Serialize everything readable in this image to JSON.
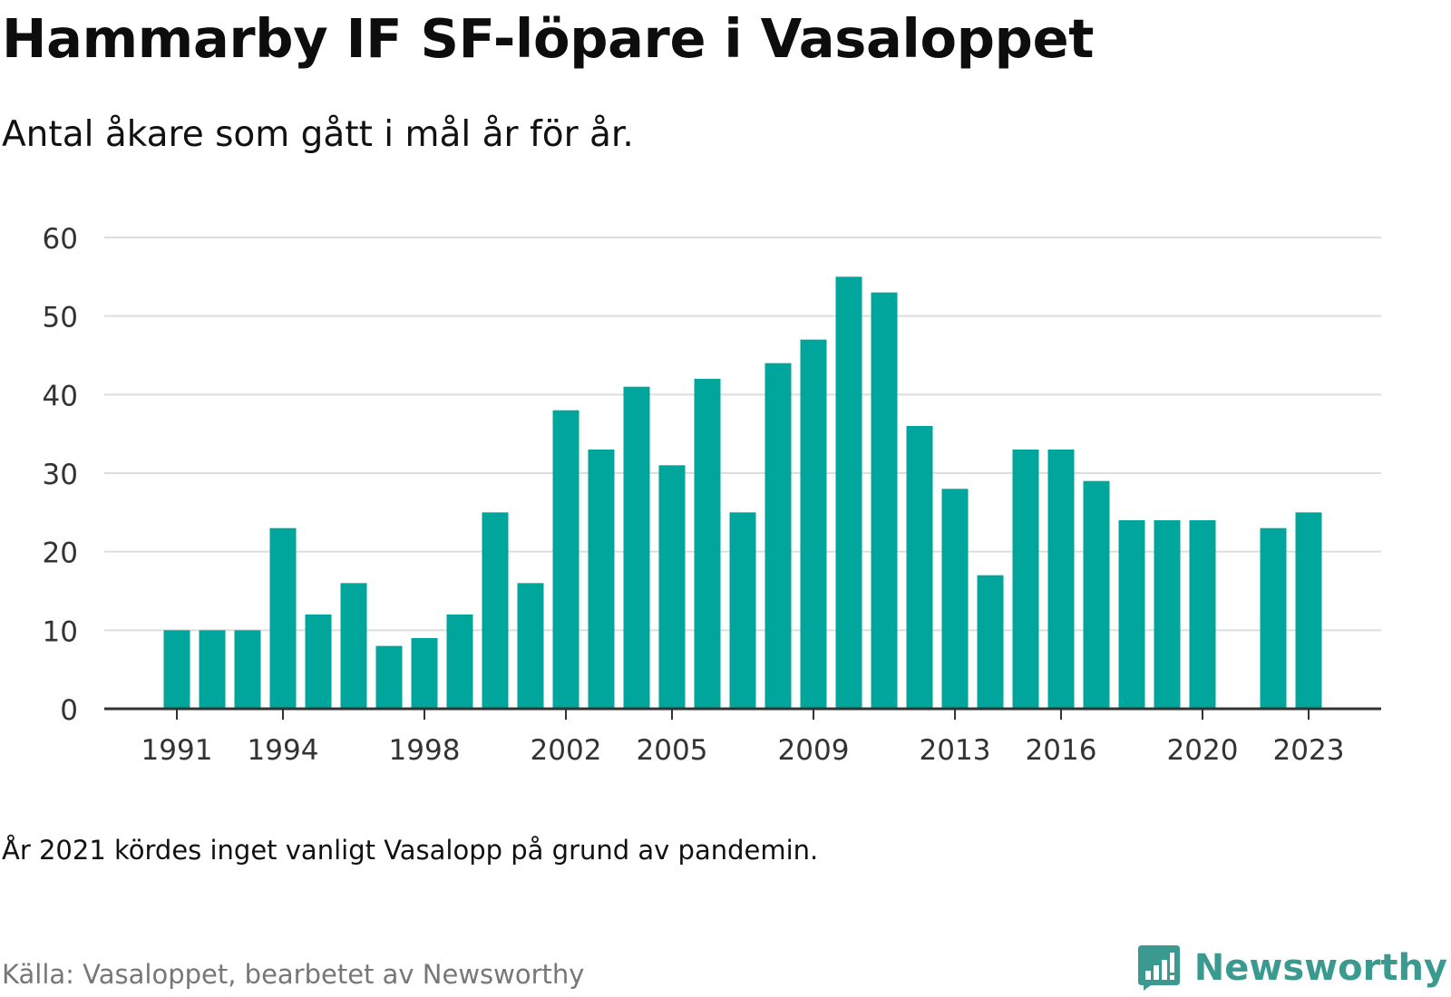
{
  "title": "Hammarby IF SF-löpare i Vasaloppet",
  "subtitle": "Antal åkare som gått i mål år för år.",
  "note": "År 2021 kördes inget vanligt Vasalopp på grund av pandemin.",
  "source": "Källa: Vasaloppet, bearbetet av Newsworthy",
  "brand": {
    "name": "Newsworthy",
    "icon": "bar-chart-speech-bubble-icon",
    "color": "#3a9a8f"
  },
  "colors": {
    "bar": "#00a69b",
    "grid": "#dddddd",
    "axis": "#333333",
    "tick_text": "#333333"
  },
  "chart_data": {
    "type": "bar",
    "title": "",
    "xlabel": "",
    "ylabel": "",
    "ylim": [
      0,
      60
    ],
    "yticks": [
      0,
      10,
      20,
      30,
      40,
      50,
      60
    ],
    "grid": true,
    "xtick_labels": [
      "1991",
      "1994",
      "1998",
      "2002",
      "2005",
      "2009",
      "2013",
      "2016",
      "2020",
      "2023"
    ],
    "categories": [
      1991,
      1992,
      1993,
      1994,
      1995,
      1996,
      1997,
      1998,
      1999,
      2000,
      2001,
      2002,
      2003,
      2004,
      2005,
      2006,
      2007,
      2008,
      2009,
      2010,
      2011,
      2012,
      2013,
      2014,
      2015,
      2016,
      2017,
      2018,
      2019,
      2020,
      2021,
      2022,
      2023
    ],
    "values": [
      10,
      10,
      10,
      23,
      12,
      16,
      8,
      9,
      12,
      25,
      16,
      38,
      33,
      41,
      31,
      42,
      25,
      44,
      47,
      55,
      53,
      36,
      28,
      17,
      33,
      33,
      29,
      24,
      24,
      24,
      null,
      23,
      25
    ]
  }
}
